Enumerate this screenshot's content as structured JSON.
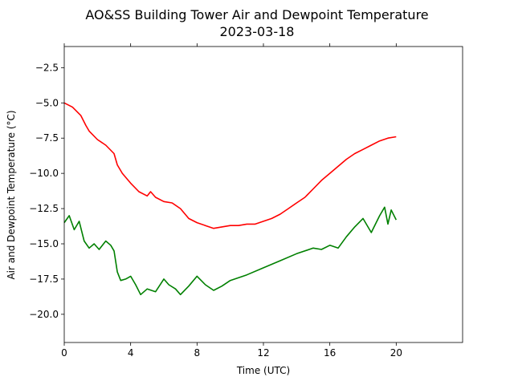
{
  "chart_data": {
    "type": "line",
    "title": "AO&SS Building Tower Air and Dewpoint Temperature",
    "subtitle": "2023-03-18",
    "xlabel": "Time (UTC)",
    "ylabel": "Air and Dewpoint Temperature (°C)",
    "xlim": [
      0,
      24
    ],
    "ylim": [
      -22,
      -1
    ],
    "xticks": [
      0,
      4,
      8,
      12,
      16,
      20
    ],
    "yticks": [
      -20.0,
      -17.5,
      -15.0,
      -12.5,
      -10.0,
      -7.5,
      -5.0,
      -2.5
    ],
    "xtick_labels": [
      "0",
      "4",
      "8",
      "12",
      "16",
      "20"
    ],
    "ytick_labels": [
      "−20.0",
      "−17.5",
      "−15.0",
      "−12.5",
      "−10.0",
      "−7.5",
      "−5.0",
      "−2.5"
    ],
    "grid": false,
    "series": [
      {
        "color": "#ff0000",
        "x": [
          0,
          0.5,
          1,
          1.3,
          1.5,
          2,
          2.5,
          3,
          3.2,
          3.5,
          4,
          4.5,
          5,
          5.2,
          5.5,
          6,
          6.5,
          7,
          7.5,
          8,
          8.5,
          9,
          9.5,
          10,
          10.5,
          11,
          11.5,
          12,
          12.5,
          13,
          13.5,
          14,
          14.5,
          15,
          15.5,
          16,
          16.5,
          17,
          17.5,
          18,
          18.5,
          19,
          19.5,
          20
        ],
        "y": [
          -5.0,
          -5.3,
          -5.9,
          -6.6,
          -7.0,
          -7.6,
          -8.0,
          -8.6,
          -9.4,
          -10.0,
          -10.7,
          -11.3,
          -11.6,
          -11.3,
          -11.7,
          -12.0,
          -12.1,
          -12.5,
          -13.2,
          -13.5,
          -13.7,
          -13.9,
          -13.8,
          -13.7,
          -13.7,
          -13.6,
          -13.6,
          -13.4,
          -13.2,
          -12.9,
          -12.5,
          -12.1,
          -11.7,
          -11.1,
          -10.5,
          -10.0,
          -9.5,
          -9.0,
          -8.6,
          -8.3,
          -8.0,
          -7.7,
          -7.5,
          -7.4
        ]
      },
      {
        "color": "#008000",
        "x": [
          0,
          0.3,
          0.6,
          0.9,
          1.2,
          1.5,
          1.8,
          2.1,
          2.5,
          2.8,
          3.0,
          3.2,
          3.4,
          3.7,
          4.0,
          4.3,
          4.6,
          5.0,
          5.5,
          6.0,
          6.3,
          6.7,
          7.0,
          7.5,
          8.0,
          8.5,
          9.0,
          9.5,
          10,
          11,
          12,
          13,
          14,
          15,
          15.5,
          16,
          16.5,
          17,
          17.5,
          18,
          18.5,
          19,
          19.3,
          19.5,
          19.7,
          20
        ],
        "y": [
          -13.5,
          -13.0,
          -14.0,
          -13.4,
          -14.8,
          -15.3,
          -15.0,
          -15.4,
          -14.8,
          -15.1,
          -15.5,
          -17.0,
          -17.6,
          -17.5,
          -17.3,
          -17.9,
          -18.6,
          -18.2,
          -18.4,
          -17.5,
          -17.9,
          -18.2,
          -18.6,
          -18.0,
          -17.3,
          -17.9,
          -18.3,
          -18.0,
          -17.6,
          -17.2,
          -16.7,
          -16.2,
          -15.7,
          -15.3,
          -15.4,
          -15.1,
          -15.3,
          -14.5,
          -13.8,
          -13.2,
          -14.2,
          -13.0,
          -12.4,
          -13.6,
          -12.6,
          -13.3
        ]
      }
    ]
  }
}
